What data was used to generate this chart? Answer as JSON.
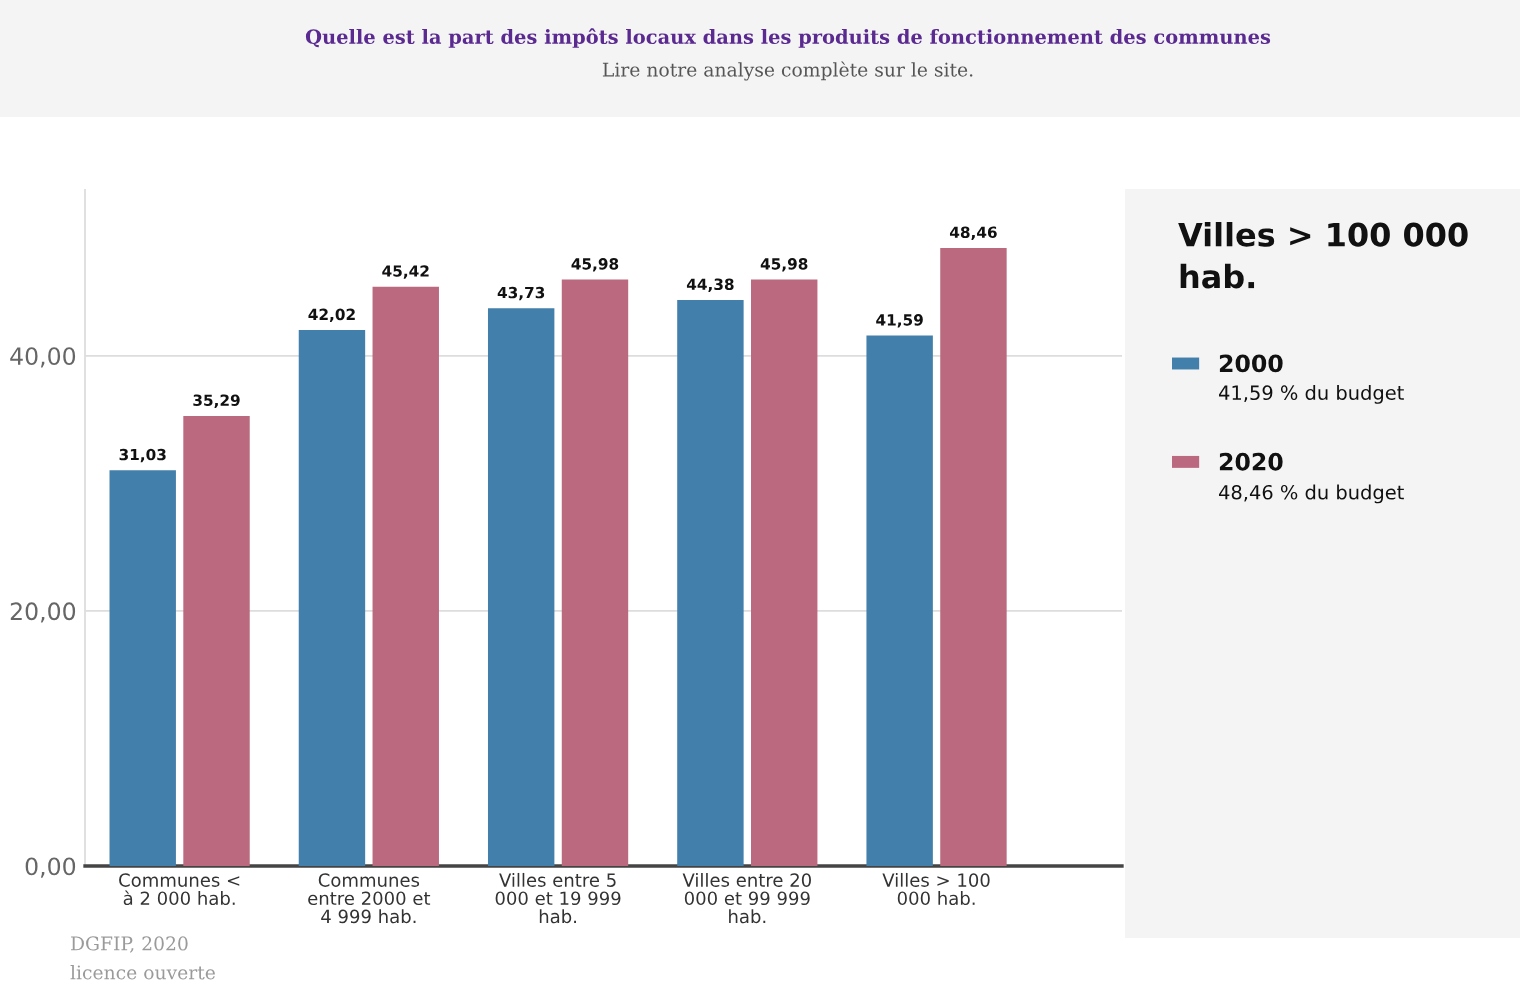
{
  "chart_data": {
    "type": "bar",
    "title": "Quelle est la part des impôts locaux dans les produits de fonctionnement des communes",
    "subtitle": "Lire notre analyse complète sur le site.",
    "legend_title": "Villes > 100 000 hab.",
    "categories": [
      "Communes < à 2 000 hab.",
      "Communes entre 2000 et 4 999 hab.",
      "Villes entre 5 000 et 19 999 hab.",
      "Villes entre 20 000 et 99 999 hab.",
      "Villes > 100 000 hab."
    ],
    "series": [
      {
        "name": "2000",
        "color": "#427fab",
        "values": [
          31.03,
          42.02,
          43.73,
          44.38,
          41.59
        ],
        "value_labels": [
          "31,03",
          "42,02",
          "43,73",
          "44,38",
          "41,59"
        ]
      },
      {
        "name": "2020",
        "color": "#bb697f",
        "values": [
          35.29,
          45.42,
          45.98,
          45.98,
          48.46
        ],
        "value_labels": [
          "35,29",
          "45,42",
          "45,98",
          "45,98",
          "48,46"
        ]
      }
    ],
    "ylim": [
      0,
      53
    ],
    "yticks": [
      {
        "value": 0,
        "label": "0,00"
      },
      {
        "value": 20,
        "label": "20,00"
      },
      {
        "value": 40,
        "label": "40,00"
      }
    ],
    "grid": "y",
    "legend": "right",
    "annotations": [
      "41,59 % du budget",
      "48,46 % du budget",
      "DGFIP, 2020",
      "licence ouverte"
    ]
  }
}
